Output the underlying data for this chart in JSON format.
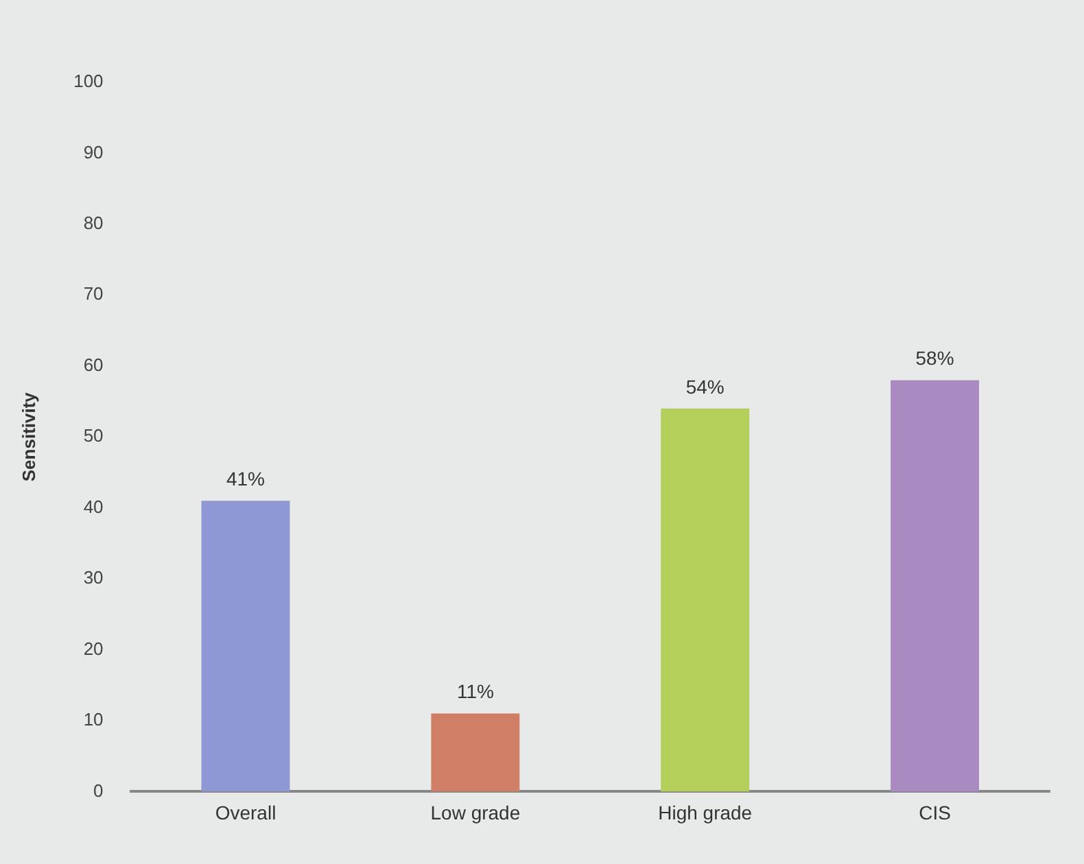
{
  "chart_data": {
    "type": "bar",
    "ylabel": "Sensitivity",
    "categories": [
      "Overall",
      "Low grade",
      "High grade",
      "CIS"
    ],
    "values": [
      41,
      11,
      54,
      58
    ],
    "colors": [
      "#8e98d2",
      "#cf7f66",
      "#b4cf5c",
      "#a98bc2"
    ],
    "value_labels": [
      "41%",
      "11%",
      "54%",
      "58%"
    ],
    "ylim": [
      0,
      100
    ],
    "yticks": [
      0,
      10,
      20,
      30,
      40,
      50,
      60,
      70,
      80,
      90,
      100
    ],
    "grid": false,
    "legend": false
  }
}
